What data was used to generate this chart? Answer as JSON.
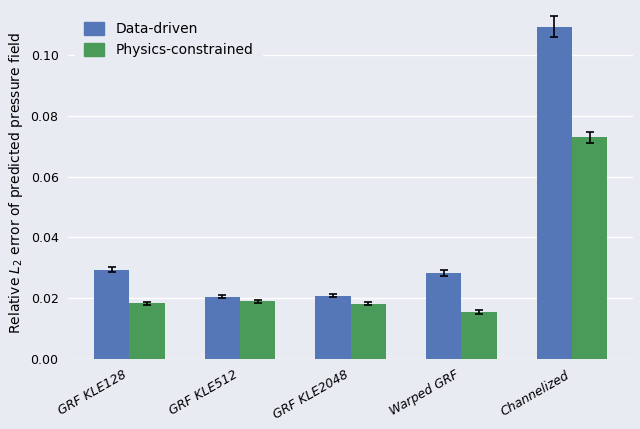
{
  "categories": [
    "GRF KLE128",
    "GRF KLE512",
    "GRF KLE2048",
    "Warped GRF",
    "Channelized"
  ],
  "data_driven_means": [
    0.0293,
    0.0205,
    0.0208,
    0.0283,
    0.1095
  ],
  "data_driven_errors": [
    0.0008,
    0.0005,
    0.0005,
    0.001,
    0.0035
  ],
  "physics_constrained_means": [
    0.0183,
    0.019,
    0.0182,
    0.0155,
    0.073
  ],
  "physics_constrained_errors": [
    0.0005,
    0.0005,
    0.0004,
    0.0007,
    0.0018
  ],
  "bar_color_data_driven": "#5577b8",
  "bar_color_physics": "#4a9a5a",
  "background_color": "#e8ebf2",
  "grid_color": "#ffffff",
  "ylabel": "Relative $L_2$ error of predicted pressure field",
  "yticks": [
    0.0,
    0.02,
    0.04,
    0.06,
    0.08,
    0.1
  ],
  "ylim": [
    0,
    0.116
  ],
  "legend_labels": [
    "Data-driven",
    "Physics-constrained"
  ],
  "bar_width": 0.32,
  "figsize": [
    6.4,
    4.29
  ],
  "dpi": 100,
  "tick_fontsize": 9,
  "label_fontsize": 10,
  "legend_fontsize": 10,
  "xlabel_rotation": 30
}
